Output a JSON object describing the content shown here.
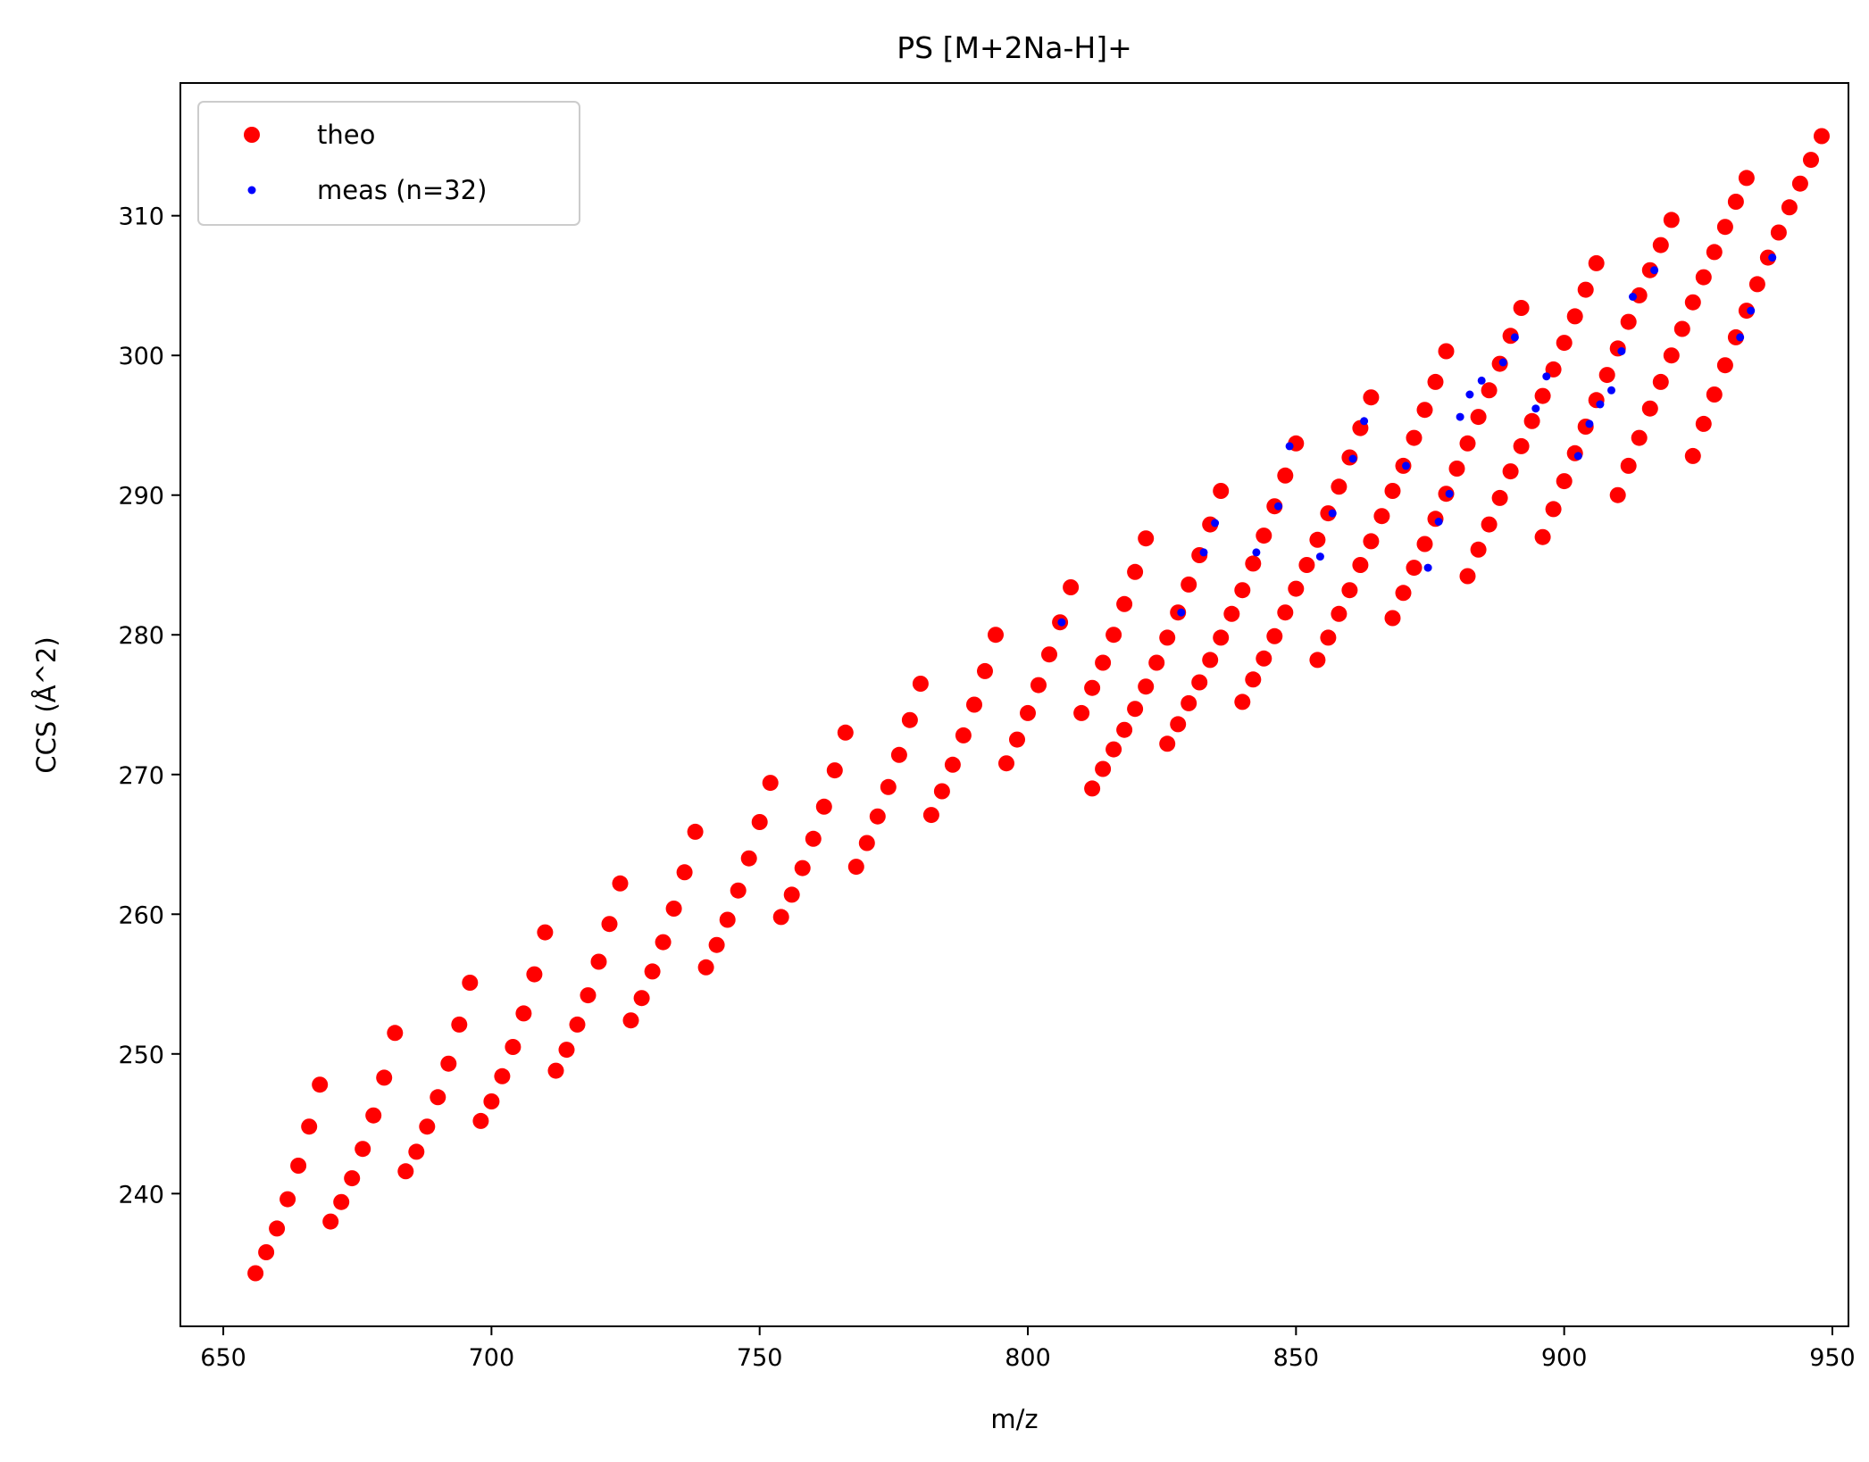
{
  "chart_data": {
    "type": "scatter",
    "title": "PS [M+2Na-H]+",
    "xlabel": "m/z",
    "ylabel": "CCS (Å^2)",
    "xlim": [
      642,
      953
    ],
    "ylim": [
      230.5,
      319.5
    ],
    "xticks": [
      650,
      700,
      750,
      800,
      850,
      900,
      950
    ],
    "yticks": [
      240,
      250,
      260,
      270,
      280,
      290,
      300,
      310
    ],
    "xtick_labels": [
      "650",
      "700",
      "750",
      "800",
      "850",
      "900",
      "950"
    ],
    "ytick_labels": [
      "240",
      "250",
      "260",
      "270",
      "280",
      "290",
      "300",
      "310"
    ],
    "grid": false,
    "legend_position": "top-left",
    "series": [
      {
        "name": "theo",
        "color": "#ff0000",
        "marker": "large-dot",
        "points": [
          [
            656.0,
            234.3
          ],
          [
            658.0,
            235.8
          ],
          [
            660.0,
            237.5
          ],
          [
            662.0,
            239.6
          ],
          [
            664.0,
            242.0
          ],
          [
            666.0,
            244.8
          ],
          [
            668.0,
            247.8
          ],
          [
            670.0,
            238.0
          ],
          [
            672.0,
            239.4
          ],
          [
            674.0,
            241.1
          ],
          [
            676.0,
            243.2
          ],
          [
            678.0,
            245.6
          ],
          [
            680.0,
            248.3
          ],
          [
            682.0,
            251.5
          ],
          [
            684.0,
            241.6
          ],
          [
            686.0,
            243.0
          ],
          [
            688.0,
            244.8
          ],
          [
            690.0,
            246.9
          ],
          [
            692.0,
            249.3
          ],
          [
            694.0,
            252.1
          ],
          [
            696.0,
            255.1
          ],
          [
            698.0,
            245.2
          ],
          [
            700.0,
            246.6
          ],
          [
            702.0,
            248.4
          ],
          [
            704.0,
            250.5
          ],
          [
            706.0,
            252.9
          ],
          [
            708.0,
            255.7
          ],
          [
            710.0,
            258.7
          ],
          [
            712.0,
            248.8
          ],
          [
            714.0,
            250.3
          ],
          [
            716.0,
            252.1
          ],
          [
            718.0,
            254.2
          ],
          [
            720.0,
            256.6
          ],
          [
            722.0,
            259.3
          ],
          [
            724.0,
            262.2
          ],
          [
            726.0,
            252.4
          ],
          [
            728.0,
            254.0
          ],
          [
            730.0,
            255.9
          ],
          [
            732.0,
            258.0
          ],
          [
            734.0,
            260.4
          ],
          [
            736.0,
            263.0
          ],
          [
            738.0,
            265.9
          ],
          [
            740.0,
            256.2
          ],
          [
            742.0,
            257.8
          ],
          [
            744.0,
            259.6
          ],
          [
            746.0,
            261.7
          ],
          [
            748.0,
            264.0
          ],
          [
            750.0,
            266.6
          ],
          [
            752.0,
            269.4
          ],
          [
            754.0,
            259.8
          ],
          [
            756.0,
            261.4
          ],
          [
            758.0,
            263.3
          ],
          [
            760.0,
            265.4
          ],
          [
            762.0,
            267.7
          ],
          [
            764.0,
            270.3
          ],
          [
            766.0,
            273.0
          ],
          [
            768.0,
            263.4
          ],
          [
            770.0,
            265.1
          ],
          [
            772.0,
            267.0
          ],
          [
            774.0,
            269.1
          ],
          [
            776.0,
            271.4
          ],
          [
            778.0,
            273.9
          ],
          [
            780.0,
            276.5
          ],
          [
            782.0,
            267.1
          ],
          [
            784.0,
            268.8
          ],
          [
            786.0,
            270.7
          ],
          [
            788.0,
            272.8
          ],
          [
            790.0,
            275.0
          ],
          [
            792.0,
            277.4
          ],
          [
            794.0,
            280.0
          ],
          [
            796.0,
            270.8
          ],
          [
            798.0,
            272.5
          ],
          [
            800.0,
            274.4
          ],
          [
            802.0,
            276.4
          ],
          [
            804.0,
            278.6
          ],
          [
            806.0,
            280.9
          ],
          [
            808.0,
            283.4
          ],
          [
            810.0,
            274.4
          ],
          [
            812.0,
            269.0
          ],
          [
            814.0,
            270.4
          ],
          [
            816.0,
            271.8
          ],
          [
            818.0,
            273.2
          ],
          [
            820.0,
            274.7
          ],
          [
            822.0,
            276.3
          ],
          [
            824.0,
            278.0
          ],
          [
            826.0,
            272.2
          ],
          [
            812.0,
            276.2
          ],
          [
            814.0,
            278.0
          ],
          [
            816.0,
            280.0
          ],
          [
            818.0,
            282.2
          ],
          [
            820.0,
            284.5
          ],
          [
            822.0,
            286.9
          ],
          [
            828.0,
            273.6
          ],
          [
            830.0,
            275.1
          ],
          [
            832.0,
            276.6
          ],
          [
            834.0,
            278.2
          ],
          [
            836.0,
            279.8
          ],
          [
            838.0,
            281.5
          ],
          [
            840.0,
            275.2
          ],
          [
            826.0,
            279.8
          ],
          [
            828.0,
            281.6
          ],
          [
            830.0,
            283.6
          ],
          [
            832.0,
            285.7
          ],
          [
            834.0,
            287.9
          ],
          [
            836.0,
            290.3
          ],
          [
            842.0,
            276.8
          ],
          [
            844.0,
            278.3
          ],
          [
            846.0,
            279.9
          ],
          [
            848.0,
            281.6
          ],
          [
            850.0,
            283.3
          ],
          [
            852.0,
            285.0
          ],
          [
            854.0,
            278.2
          ],
          [
            840.0,
            283.2
          ],
          [
            842.0,
            285.1
          ],
          [
            844.0,
            287.1
          ],
          [
            846.0,
            289.2
          ],
          [
            848.0,
            291.4
          ],
          [
            850.0,
            293.7
          ],
          [
            856.0,
            279.8
          ],
          [
            858.0,
            281.5
          ],
          [
            860.0,
            283.2
          ],
          [
            862.0,
            285.0
          ],
          [
            864.0,
            286.7
          ],
          [
            866.0,
            288.5
          ],
          [
            868.0,
            281.2
          ],
          [
            854.0,
            286.8
          ],
          [
            856.0,
            288.7
          ],
          [
            858.0,
            290.6
          ],
          [
            860.0,
            292.7
          ],
          [
            862.0,
            294.8
          ],
          [
            864.0,
            297.0
          ],
          [
            870.0,
            283.0
          ],
          [
            872.0,
            284.8
          ],
          [
            874.0,
            286.5
          ],
          [
            876.0,
            288.3
          ],
          [
            878.0,
            290.1
          ],
          [
            880.0,
            291.9
          ],
          [
            882.0,
            284.2
          ],
          [
            868.0,
            290.3
          ],
          [
            870.0,
            292.1
          ],
          [
            872.0,
            294.1
          ],
          [
            874.0,
            296.1
          ],
          [
            876.0,
            298.1
          ],
          [
            878.0,
            300.3
          ],
          [
            884.0,
            286.1
          ],
          [
            886.0,
            287.9
          ],
          [
            888.0,
            289.8
          ],
          [
            890.0,
            291.7
          ],
          [
            892.0,
            293.5
          ],
          [
            894.0,
            295.3
          ],
          [
            896.0,
            287.0
          ],
          [
            882.0,
            293.7
          ],
          [
            884.0,
            295.6
          ],
          [
            886.0,
            297.5
          ],
          [
            888.0,
            299.4
          ],
          [
            890.0,
            301.4
          ],
          [
            892.0,
            303.4
          ],
          [
            898.0,
            289.0
          ],
          [
            900.0,
            291.0
          ],
          [
            902.0,
            293.0
          ],
          [
            904.0,
            294.9
          ],
          [
            906.0,
            296.8
          ],
          [
            908.0,
            298.6
          ],
          [
            910.0,
            290.0
          ],
          [
            896.0,
            297.1
          ],
          [
            898.0,
            299.0
          ],
          [
            900.0,
            300.9
          ],
          [
            902.0,
            302.8
          ],
          [
            904.0,
            304.7
          ],
          [
            906.0,
            306.6
          ],
          [
            912.0,
            292.1
          ],
          [
            914.0,
            294.1
          ],
          [
            916.0,
            296.2
          ],
          [
            918.0,
            298.1
          ],
          [
            920.0,
            300.0
          ],
          [
            922.0,
            301.9
          ],
          [
            924.0,
            292.8
          ],
          [
            910.0,
            300.5
          ],
          [
            912.0,
            302.4
          ],
          [
            914.0,
            304.3
          ],
          [
            916.0,
            306.1
          ],
          [
            918.0,
            307.9
          ],
          [
            920.0,
            309.7
          ],
          [
            926.0,
            295.1
          ],
          [
            928.0,
            297.2
          ],
          [
            930.0,
            299.3
          ],
          [
            932.0,
            301.3
          ],
          [
            934.0,
            303.2
          ],
          [
            936.0,
            305.1
          ],
          [
            924.0,
            303.8
          ],
          [
            926.0,
            305.6
          ],
          [
            928.0,
            307.4
          ],
          [
            930.0,
            309.2
          ],
          [
            932.0,
            311.0
          ],
          [
            934.0,
            312.7
          ],
          [
            938.0,
            307.0
          ],
          [
            940.0,
            308.8
          ],
          [
            942.0,
            310.6
          ],
          [
            944.0,
            312.3
          ],
          [
            946.0,
            314.0
          ],
          [
            948.0,
            315.7
          ]
        ]
      },
      {
        "name": "meas (n=32)",
        "color": "#0000ff",
        "marker": "small-dot",
        "points": [
          [
            806.3,
            280.9
          ],
          [
            828.6,
            281.6
          ],
          [
            832.8,
            285.9
          ],
          [
            834.9,
            288.0
          ],
          [
            842.6,
            285.9
          ],
          [
            846.7,
            289.2
          ],
          [
            848.8,
            293.5
          ],
          [
            854.5,
            285.6
          ],
          [
            856.8,
            288.7
          ],
          [
            860.6,
            292.6
          ],
          [
            862.7,
            295.3
          ],
          [
            870.5,
            292.1
          ],
          [
            874.6,
            284.8
          ],
          [
            876.6,
            288.1
          ],
          [
            878.6,
            290.1
          ],
          [
            880.6,
            295.6
          ],
          [
            882.4,
            297.2
          ],
          [
            884.6,
            298.2
          ],
          [
            888.6,
            299.5
          ],
          [
            890.8,
            301.3
          ],
          [
            894.7,
            296.2
          ],
          [
            896.7,
            298.5
          ],
          [
            902.6,
            292.8
          ],
          [
            904.7,
            295.1
          ],
          [
            906.7,
            296.5
          ],
          [
            908.8,
            297.5
          ],
          [
            910.7,
            300.3
          ],
          [
            912.8,
            304.2
          ],
          [
            916.8,
            306.1
          ],
          [
            932.8,
            301.3
          ],
          [
            934.8,
            303.2
          ],
          [
            938.8,
            307.0
          ]
        ]
      }
    ]
  }
}
